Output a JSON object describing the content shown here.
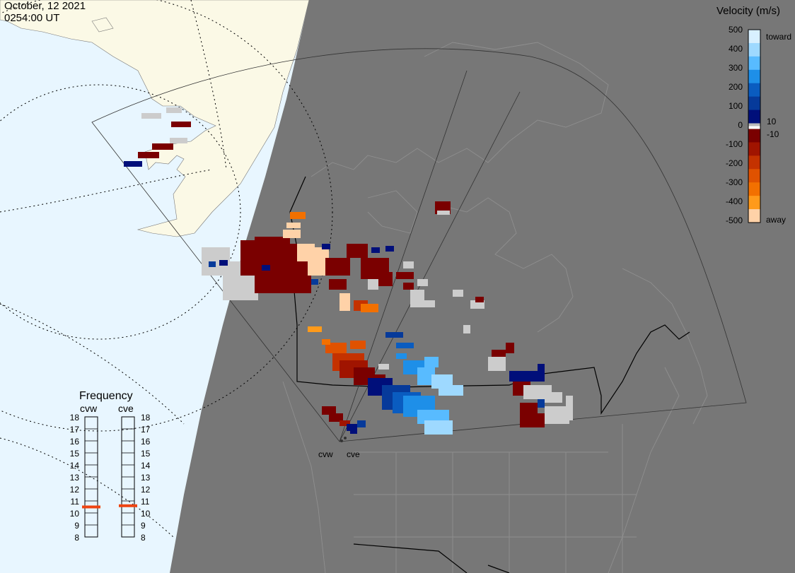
{
  "header": {
    "date": "October, 12 2021",
    "time": "0254:00 UT"
  },
  "colorbar": {
    "title": "Velocity (m/s)",
    "ticks": [
      "500",
      "400",
      "300",
      "200",
      "100",
      "10",
      "0",
      "-10",
      "-100",
      "-200",
      "-300",
      "-400",
      "-500"
    ],
    "toward_label": "toward",
    "away_label": "away",
    "colors_toward": [
      "#d8f0ff",
      "#9ed9ff",
      "#58bbff",
      "#1e8fe8",
      "#0a5cc0",
      "#063a9a",
      "#000f7a"
    ],
    "colors_away": [
      "#7a0000",
      "#a01400",
      "#c43200",
      "#e05200",
      "#f27000",
      "#ff9a1a",
      "#ffd2a8"
    ]
  },
  "radars": [
    {
      "name": "cvw",
      "frequency_mhz": 10.5
    },
    {
      "name": "cve",
      "frequency_mhz": 10.6
    }
  ],
  "frequency_panel": {
    "title": "Frequency",
    "scale": [
      "18",
      "17",
      "16",
      "15",
      "14",
      "13",
      "12",
      "11",
      "10",
      "9",
      "8"
    ],
    "range": [
      8,
      18
    ]
  },
  "colors": {
    "ocean": "#e8f6ff",
    "land_day": "#fbf9e6",
    "night": "#777777",
    "ground_scatter": "#cccccc",
    "marker": "#ee4411"
  }
}
